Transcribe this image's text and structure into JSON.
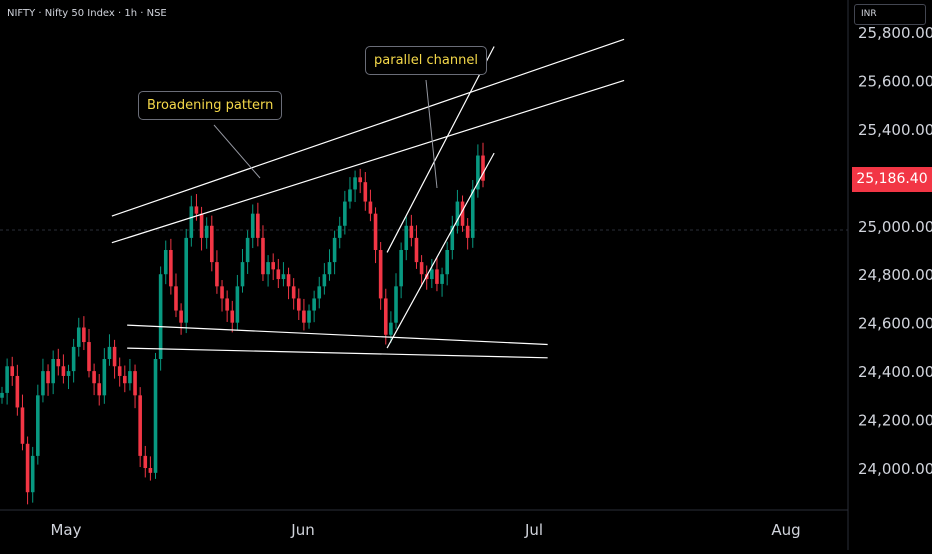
{
  "header": {
    "symbol_title": "NIFTY · Nifty 50 Index · 1h · NSE"
  },
  "currency_selector": {
    "label": "INR"
  },
  "last_price_label": "25,186.40",
  "annotations": {
    "broadening": "Broadening pattern",
    "parallel": "parallel channel"
  },
  "colors": {
    "background": "#000000",
    "up_candle": "#089981",
    "down_candle": "#f23645",
    "last_price": "#f23645",
    "note_text": "#f5d94a",
    "trendline": "#ffffff"
  },
  "chart_data": {
    "type": "candlestick",
    "title": "NIFTY · Nifty 50 Index · 1h · NSE",
    "currency": "INR",
    "x_tick_labels": [
      "May",
      "Jun",
      "Jul",
      "Aug"
    ],
    "y_ticks": [
      24000,
      24200,
      24400,
      24600,
      24800,
      25000,
      25200,
      25400,
      25600,
      25800
    ],
    "y_tick_labels": [
      "24,000.00",
      "24,200.00",
      "24,400.00",
      "24,600.00",
      "24,800.00",
      "25,000.00",
      "25,200.00",
      "25,400.00",
      "25,600.00",
      "25,800.00"
    ],
    "ylim": [
      23880,
      25830
    ],
    "last_price": 25186.4,
    "series": [
      {
        "values": [
          24310,
          24420,
          24380,
          24250,
          24100,
          23900,
          24050,
          24300,
          24400,
          24350,
          24450,
          24420,
          24380,
          24400,
          24500,
          24580,
          24520,
          24400,
          24350,
          24300,
          24450,
          24500,
          24420,
          24380,
          24350,
          24400,
          24300,
          24050,
          24000,
          23980,
          24450,
          24800,
          24900,
          24750,
          24650,
          24600,
          24950,
          25080,
          25050,
          24950,
          25000,
          24850,
          24750,
          24700,
          24650,
          24600,
          24750,
          24850,
          24950,
          25050,
          24950,
          24800,
          24850,
          24820,
          24780,
          24800,
          24750,
          24700,
          24650,
          24600,
          24650,
          24700,
          24750,
          24800,
          24850,
          24950,
          25000,
          25100,
          25150,
          25200,
          25180,
          25100,
          25050,
          24900,
          24700,
          24550,
          24600,
          24750,
          24900,
          25000,
          24950,
          24850,
          24800,
          24780,
          24820,
          24760,
          24800,
          24900,
          25000,
          25100,
          25000,
          24950,
          25150,
          25290,
          25186
        ]
      }
    ],
    "trendlines": [
      {
        "label": "upper broadening line",
        "points": [
          [
            "2025-05-07",
            25040
          ],
          [
            "2025-07-13",
            25770
          ]
        ]
      },
      {
        "label": "upper channel line",
        "points": [
          [
            "2025-05-07",
            24930
          ],
          [
            "2025-07-13",
            25600
          ]
        ]
      },
      {
        "label": "lower support line 1",
        "points": [
          [
            "2025-05-09",
            24590
          ],
          [
            "2025-07-03",
            24510
          ]
        ]
      },
      {
        "label": "lower support line 2",
        "points": [
          [
            "2025-05-09",
            24495
          ],
          [
            "2025-07-03",
            24455
          ]
        ]
      },
      {
        "label": "channel upper ray",
        "points": [
          [
            "2025-06-12",
            24890
          ],
          [
            "2025-06-26",
            25740
          ]
        ]
      },
      {
        "label": "channel lower ray",
        "points": [
          [
            "2025-06-12",
            24495
          ],
          [
            "2025-06-26",
            25300
          ]
        ]
      }
    ]
  }
}
